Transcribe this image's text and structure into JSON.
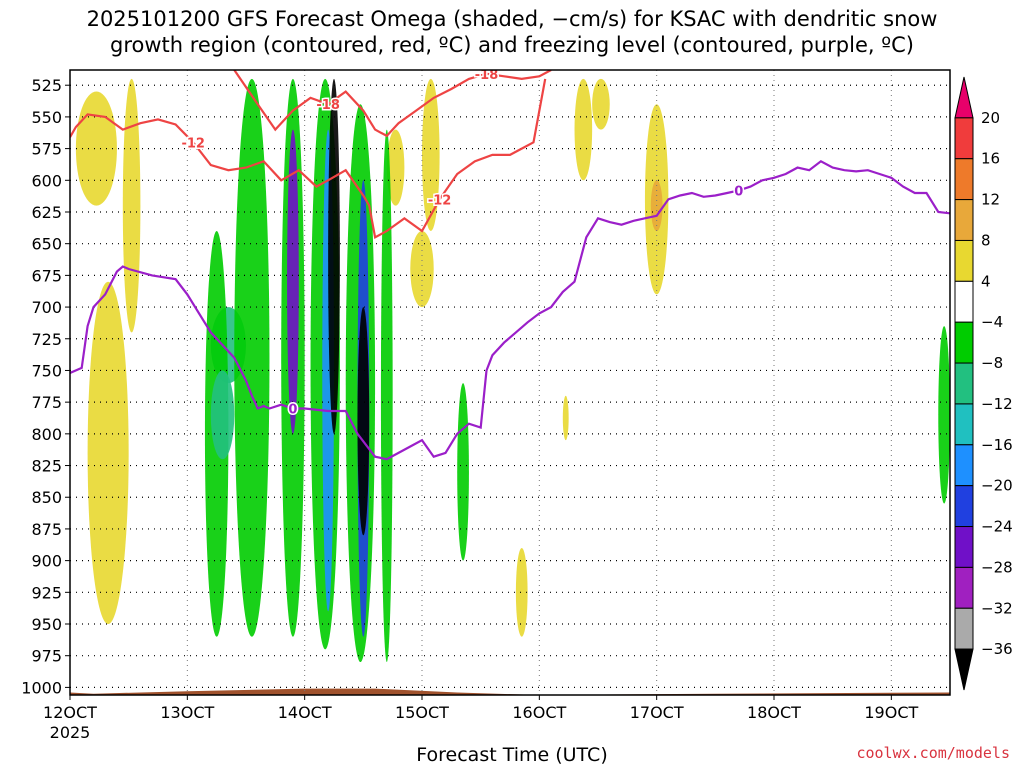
{
  "title": {
    "line1": "2025101200 GFS Forecast Omega (shaded, −cm/s) for KSAC with dendritic snow",
    "line2": "growth region (contoured, red, ºC) and freezing level (contoured, purple, ºC)"
  },
  "credit": "coolwx.com/models",
  "chart_data": {
    "type": "heatmap",
    "title": "2025101200 GFS Forecast Omega (shaded, −cm/s) for KSAC with dendritic snow growth region (contoured, red, ºC) and freezing level (contoured, purple, ºC)",
    "xlabel": "Forecast Time (UTC)",
    "ylabel": "",
    "x_ticks": [
      "12OCT",
      "13OCT",
      "14OCT",
      "15OCT",
      "16OCT",
      "17OCT",
      "18OCT",
      "19OCT"
    ],
    "x_year_label": "2025",
    "xlim_days": [
      12,
      19.5
    ],
    "y_ticks": [
      525,
      550,
      575,
      600,
      625,
      650,
      675,
      700,
      725,
      750,
      775,
      800,
      825,
      850,
      875,
      900,
      925,
      950,
      975,
      1000
    ],
    "ylim": [
      513,
      1006
    ],
    "grid": true,
    "colorbar": {
      "labels": [
        "20",
        "16",
        "12",
        "8",
        "4",
        "−4",
        "−8",
        "−12",
        "−16",
        "−20",
        "−24",
        "−28",
        "−32",
        "−36"
      ],
      "colors": [
        "#e8006a",
        "#f03c3c",
        "#ee7a2a",
        "#e8a83a",
        "#e8d830",
        "#ffffff",
        "#00cc00",
        "#22c080",
        "#20c0c0",
        "#1e90ff",
        "#2040e0",
        "#7010c8",
        "#a020c0",
        "#aaaaaa",
        "#000000"
      ]
    },
    "series": [
      {
        "name": "freezing level",
        "color": "#9b1fc9",
        "label": "0",
        "x": [
          12.0,
          12.1,
          12.15,
          12.2,
          12.3,
          12.4,
          12.45,
          12.5,
          12.7,
          12.9,
          13.0,
          13.2,
          13.4,
          13.5,
          13.55,
          13.6,
          13.65,
          13.7,
          13.8,
          13.9,
          14.0,
          14.2,
          14.35,
          14.45,
          14.55,
          14.6,
          14.7,
          14.8,
          14.9,
          15.0,
          15.1,
          15.2,
          15.3,
          15.4,
          15.5,
          15.55,
          15.6,
          15.7,
          15.8,
          15.9,
          16.0,
          16.1,
          16.2,
          16.3,
          16.4,
          16.5,
          16.6,
          16.7,
          16.8,
          16.9,
          17.0,
          17.1,
          17.2,
          17.3,
          17.4,
          17.5,
          17.6,
          17.7,
          17.8,
          17.9,
          18.0,
          18.1,
          18.2,
          18.3,
          18.4,
          18.5,
          18.6,
          18.7,
          18.8,
          18.9,
          19.0,
          19.1,
          19.2,
          19.3,
          19.4,
          19.5
        ],
        "y": [
          752,
          748,
          715,
          700,
          690,
          672,
          668,
          670,
          675,
          678,
          690,
          720,
          740,
          758,
          770,
          780,
          778,
          780,
          777,
          780,
          780,
          782,
          782,
          800,
          812,
          818,
          820,
          815,
          810,
          805,
          818,
          815,
          800,
          792,
          795,
          750,
          738,
          728,
          720,
          712,
          705,
          700,
          688,
          680,
          645,
          630,
          633,
          635,
          632,
          630,
          628,
          615,
          612,
          610,
          613,
          612,
          610,
          608,
          605,
          600,
          598,
          595,
          590,
          592,
          585,
          590,
          592,
          593,
          592,
          595,
          598,
          605,
          610,
          610,
          625,
          626
        ]
      },
      {
        "name": "dendritic -12 lower",
        "color": "#ee4444",
        "label": "-12",
        "x": [
          12.0,
          12.05,
          12.15,
          12.3,
          12.45,
          12.6,
          12.75,
          12.9,
          13.05,
          13.2,
          13.35,
          13.5,
          13.65,
          13.8,
          13.95,
          14.1,
          14.2,
          14.35,
          14.5,
          14.55,
          14.6,
          14.7,
          14.85,
          15.0,
          15.15,
          15.3,
          15.45,
          15.6,
          15.75,
          15.85,
          15.95,
          16.05
        ],
        "y": [
          566,
          558,
          548,
          550,
          560,
          555,
          552,
          556,
          570,
          588,
          592,
          590,
          585,
          600,
          592,
          605,
          600,
          592,
          612,
          620,
          645,
          640,
          630,
          640,
          615,
          595,
          585,
          580,
          580,
          575,
          570,
          520
        ]
      },
      {
        "name": "dendritic -18 upper",
        "color": "#ee4444",
        "label": "-18",
        "x": [
          13.4,
          13.6,
          13.75,
          13.9,
          14.05,
          14.2,
          14.35,
          14.5,
          14.6,
          14.7,
          14.8,
          14.95,
          15.1,
          15.25,
          15.4,
          15.55,
          15.7,
          15.85,
          16.0,
          16.1
        ],
        "y": [
          513,
          540,
          560,
          545,
          535,
          540,
          530,
          545,
          560,
          565,
          555,
          545,
          535,
          528,
          520,
          516,
          518,
          520,
          518,
          513
        ]
      }
    ]
  },
  "axes": {
    "xlabel": "Forecast Time (UTC)",
    "year": "2025"
  }
}
